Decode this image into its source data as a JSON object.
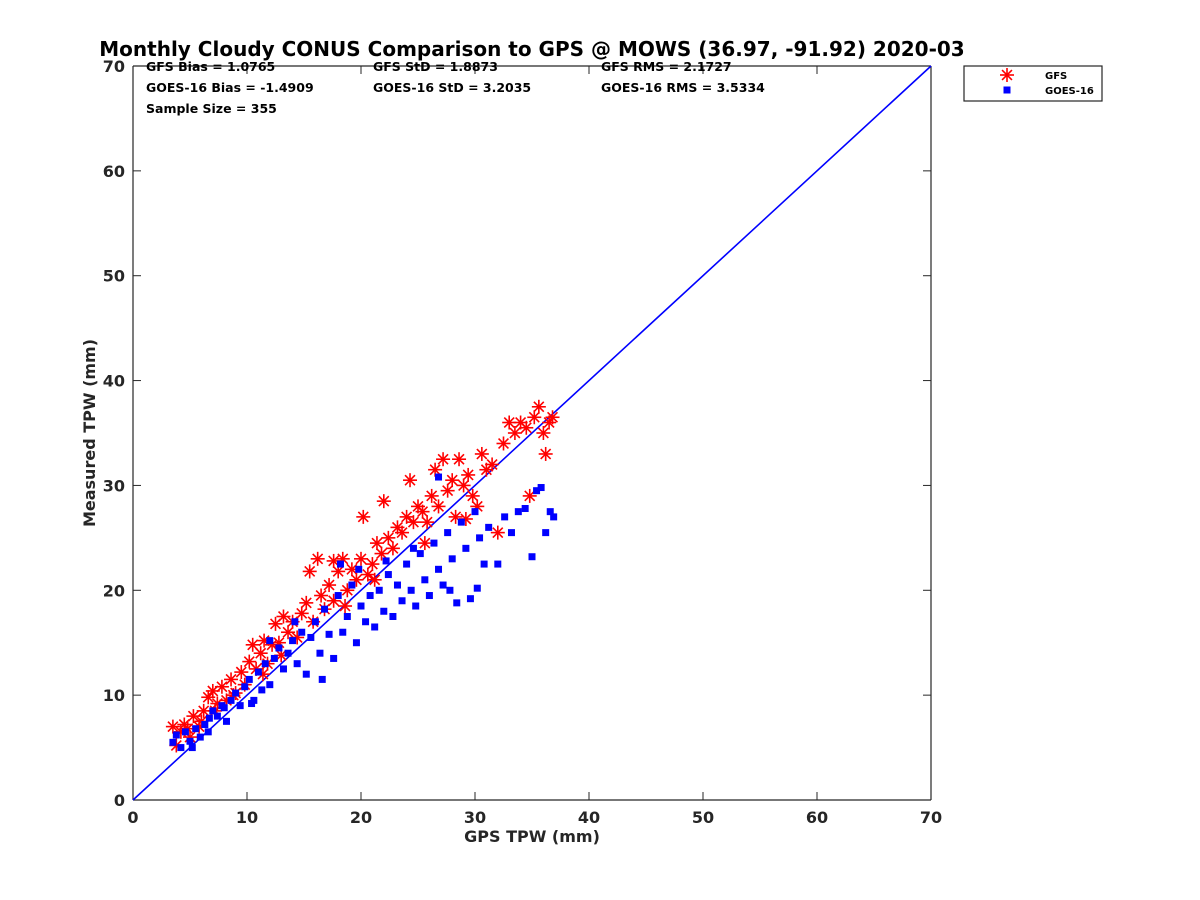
{
  "chart_data": {
    "type": "scatter",
    "title": "Monthly Cloudy CONUS Comparison to GPS @ MOWS (36.97, -91.92) 2020-03",
    "xlabel": "GPS TPW (mm)",
    "ylabel": "Measured TPW (mm)",
    "xlim": [
      0,
      70
    ],
    "ylim": [
      0,
      70
    ],
    "xticks": [
      "0",
      "10",
      "20",
      "30",
      "40",
      "50",
      "60",
      "70"
    ],
    "yticks": [
      "0",
      "10",
      "20",
      "30",
      "40",
      "50",
      "60",
      "70"
    ],
    "grid": false,
    "legend_position": "top-right",
    "stats": [
      [
        "GFS Bias = 1.0765",
        "GFS StD = 1.8873",
        "GFS RMS = 2.1727"
      ],
      [
        "GOES-16 Bias = -1.4909",
        "GOES-16 StD = 3.2035",
        "GOES-16 RMS = 3.5334"
      ],
      [
        "Sample Size = 355"
      ]
    ],
    "reference_line": {
      "x": [
        0,
        70
      ],
      "y": [
        0,
        70
      ],
      "color": "#0000ff"
    },
    "series": [
      {
        "name": "GFS",
        "marker": "asterisk",
        "color": "#ff0000",
        "points": [
          [
            3.5,
            7.0
          ],
          [
            3.8,
            5.2
          ],
          [
            4.2,
            6.5
          ],
          [
            4.5,
            7.2
          ],
          [
            5.0,
            6.0
          ],
          [
            5.3,
            8.0
          ],
          [
            5.8,
            7.0
          ],
          [
            6.2,
            8.5
          ],
          [
            6.6,
            9.8
          ],
          [
            7.0,
            10.4
          ],
          [
            7.4,
            9.2
          ],
          [
            7.8,
            10.8
          ],
          [
            8.2,
            9.5
          ],
          [
            8.6,
            11.5
          ],
          [
            9.0,
            10.2
          ],
          [
            9.5,
            12.2
          ],
          [
            9.8,
            11.0
          ],
          [
            10.2,
            13.2
          ],
          [
            10.5,
            14.8
          ],
          [
            10.8,
            12.5
          ],
          [
            11.2,
            14.0
          ],
          [
            11.5,
            15.2
          ],
          [
            11.8,
            13.0
          ],
          [
            12.2,
            14.8
          ],
          [
            12.5,
            16.8
          ],
          [
            12.8,
            15.0
          ],
          [
            13.2,
            17.5
          ],
          [
            13.6,
            16.0
          ],
          [
            14.0,
            17.0
          ],
          [
            14.4,
            15.5
          ],
          [
            14.8,
            17.8
          ],
          [
            15.2,
            18.8
          ],
          [
            15.5,
            21.8
          ],
          [
            15.8,
            17.0
          ],
          [
            16.2,
            23.0
          ],
          [
            16.5,
            19.5
          ],
          [
            16.8,
            18.2
          ],
          [
            17.2,
            20.5
          ],
          [
            17.6,
            19.0
          ],
          [
            18.0,
            21.8
          ],
          [
            18.4,
            23.0
          ],
          [
            18.8,
            20.0
          ],
          [
            19.2,
            22.0
          ],
          [
            19.6,
            21.0
          ],
          [
            20.0,
            23.0
          ],
          [
            20.2,
            27.0
          ],
          [
            20.6,
            21.5
          ],
          [
            21.0,
            22.5
          ],
          [
            21.4,
            24.5
          ],
          [
            21.8,
            23.5
          ],
          [
            22.0,
            28.5
          ],
          [
            22.4,
            25.0
          ],
          [
            22.8,
            24.0
          ],
          [
            23.2,
            26.0
          ],
          [
            23.6,
            25.5
          ],
          [
            24.0,
            27.0
          ],
          [
            24.3,
            30.5
          ],
          [
            24.6,
            26.5
          ],
          [
            25.0,
            28.0
          ],
          [
            25.4,
            27.5
          ],
          [
            25.8,
            26.5
          ],
          [
            26.2,
            29.0
          ],
          [
            26.5,
            31.5
          ],
          [
            26.8,
            28.0
          ],
          [
            27.2,
            32.5
          ],
          [
            27.6,
            29.5
          ],
          [
            28.0,
            30.5
          ],
          [
            28.3,
            27.0
          ],
          [
            28.6,
            32.5
          ],
          [
            29.0,
            30.0
          ],
          [
            29.4,
            31.0
          ],
          [
            29.8,
            29.0
          ],
          [
            30.2,
            28.0
          ],
          [
            30.6,
            33.0
          ],
          [
            31.0,
            31.5
          ],
          [
            31.5,
            32.0
          ],
          [
            32.0,
            25.5
          ],
          [
            32.5,
            34.0
          ],
          [
            33.0,
            36.0
          ],
          [
            33.5,
            35.0
          ],
          [
            34.0,
            36.0
          ],
          [
            34.5,
            35.5
          ],
          [
            34.8,
            29.0
          ],
          [
            35.2,
            36.5
          ],
          [
            35.6,
            37.5
          ],
          [
            36.0,
            35.0
          ],
          [
            36.2,
            33.0
          ],
          [
            36.5,
            36.0
          ],
          [
            36.8,
            36.5
          ],
          [
            21.2,
            21.0
          ],
          [
            17.6,
            22.8
          ],
          [
            18.6,
            18.5
          ],
          [
            25.6,
            24.5
          ],
          [
            29.2,
            26.8
          ],
          [
            13.0,
            13.8
          ],
          [
            11.4,
            12.0
          ],
          [
            8.8,
            10.0
          ],
          [
            7.2,
            8.5
          ],
          [
            6.0,
            7.5
          ],
          [
            4.8,
            6.8
          ]
        ]
      },
      {
        "name": "GOES-16",
        "marker": "square",
        "color": "#0000ff",
        "points": [
          [
            3.5,
            5.5
          ],
          [
            3.8,
            6.2
          ],
          [
            4.2,
            5.0
          ],
          [
            4.6,
            6.5
          ],
          [
            5.0,
            5.6
          ],
          [
            5.5,
            6.8
          ],
          [
            5.9,
            6.0
          ],
          [
            6.3,
            7.2
          ],
          [
            6.7,
            7.8
          ],
          [
            7.0,
            8.5
          ],
          [
            7.4,
            8.0
          ],
          [
            7.8,
            9.0
          ],
          [
            8.2,
            7.5
          ],
          [
            8.6,
            9.5
          ],
          [
            9.0,
            10.2
          ],
          [
            9.4,
            9.0
          ],
          [
            9.8,
            10.8
          ],
          [
            10.2,
            11.5
          ],
          [
            10.6,
            9.5
          ],
          [
            11.0,
            12.2
          ],
          [
            11.3,
            10.5
          ],
          [
            11.6,
            13.0
          ],
          [
            12.0,
            11.0
          ],
          [
            12.4,
            13.5
          ],
          [
            12.8,
            14.5
          ],
          [
            13.2,
            12.5
          ],
          [
            13.6,
            14.0
          ],
          [
            14.0,
            15.2
          ],
          [
            14.4,
            13.0
          ],
          [
            14.8,
            16.0
          ],
          [
            15.2,
            12.0
          ],
          [
            15.6,
            15.5
          ],
          [
            16.0,
            17.0
          ],
          [
            16.4,
            14.0
          ],
          [
            16.8,
            18.2
          ],
          [
            17.2,
            15.8
          ],
          [
            17.6,
            13.5
          ],
          [
            18.0,
            19.5
          ],
          [
            18.4,
            16.0
          ],
          [
            18.8,
            17.5
          ],
          [
            19.2,
            20.5
          ],
          [
            19.6,
            15.0
          ],
          [
            20.0,
            18.5
          ],
          [
            20.4,
            17.0
          ],
          [
            20.8,
            19.5
          ],
          [
            21.2,
            16.5
          ],
          [
            21.6,
            20.0
          ],
          [
            22.0,
            18.0
          ],
          [
            22.4,
            21.5
          ],
          [
            22.8,
            17.5
          ],
          [
            23.2,
            20.5
          ],
          [
            23.6,
            19.0
          ],
          [
            24.0,
            22.5
          ],
          [
            24.4,
            20.0
          ],
          [
            24.8,
            18.5
          ],
          [
            25.2,
            23.5
          ],
          [
            25.6,
            21.0
          ],
          [
            26.0,
            19.5
          ],
          [
            26.4,
            24.5
          ],
          [
            26.8,
            22.0
          ],
          [
            27.2,
            20.5
          ],
          [
            27.6,
            25.5
          ],
          [
            28.0,
            23.0
          ],
          [
            28.4,
            18.8
          ],
          [
            28.8,
            26.5
          ],
          [
            29.2,
            24.0
          ],
          [
            29.6,
            19.2
          ],
          [
            30.0,
            27.5
          ],
          [
            30.4,
            25.0
          ],
          [
            30.8,
            22.5
          ],
          [
            31.2,
            26.0
          ],
          [
            32.0,
            22.5
          ],
          [
            32.6,
            27.0
          ],
          [
            33.2,
            25.5
          ],
          [
            33.8,
            27.5
          ],
          [
            34.4,
            27.8
          ],
          [
            35.0,
            23.2
          ],
          [
            35.4,
            29.5
          ],
          [
            35.8,
            29.8
          ],
          [
            36.2,
            25.5
          ],
          [
            36.6,
            27.5
          ],
          [
            36.9,
            27.0
          ],
          [
            26.8,
            30.8
          ],
          [
            18.2,
            22.5
          ],
          [
            14.2,
            17.0
          ],
          [
            12.0,
            15.2
          ],
          [
            10.4,
            9.2
          ],
          [
            8.0,
            8.8
          ],
          [
            6.6,
            6.5
          ],
          [
            5.2,
            5.0
          ],
          [
            22.2,
            22.8
          ],
          [
            24.6,
            24.0
          ],
          [
            16.6,
            11.5
          ],
          [
            19.8,
            22.0
          ],
          [
            27.8,
            20.0
          ],
          [
            30.2,
            20.2
          ]
        ]
      }
    ]
  }
}
